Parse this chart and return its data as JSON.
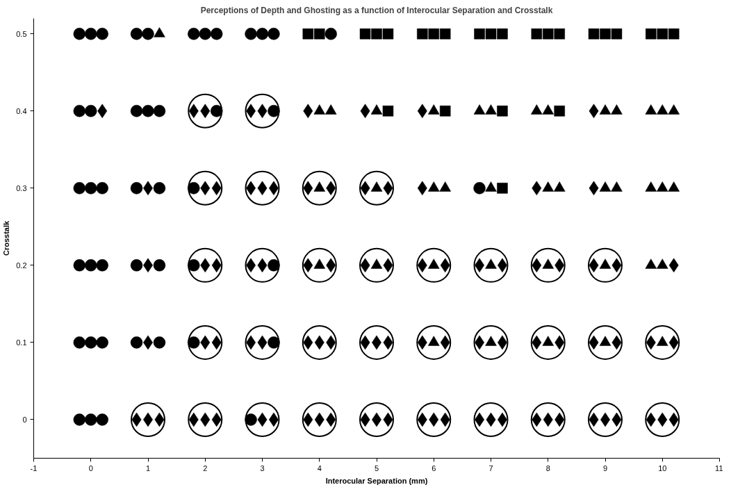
{
  "chart_data": {
    "type": "scatter",
    "title": "Perceptions of Depth and Ghosting as a function of Interocular Separation and Crosstalk",
    "xlabel": "Interocular Separation (mm)",
    "ylabel": "Crosstalk",
    "xlim": [
      -1,
      11
    ],
    "xticks": [
      -1,
      0,
      1,
      2,
      3,
      4,
      5,
      6,
      7,
      8,
      9,
      10,
      11
    ],
    "ylim": [
      -0.05,
      0.52
    ],
    "yticks": [
      0,
      0.1,
      0.2,
      0.3,
      0.4,
      0.5
    ],
    "grid": false,
    "series": [
      {
        "type": "bubble",
        "marker": "circle",
        "color": "#000000",
        "x": [
          2,
          3,
          2,
          3,
          4,
          5,
          2,
          3,
          4,
          5,
          6,
          7,
          8,
          9,
          2,
          3,
          4,
          5,
          6,
          7,
          8,
          9,
          10,
          1,
          2,
          3,
          4,
          5,
          6,
          7,
          8,
          9,
          10
        ],
        "values": [
          0.4,
          0.4,
          0.3,
          0.3,
          0.3,
          0.3,
          0.2,
          0.2,
          0.2,
          0.2,
          0.2,
          0.2,
          0.2,
          0.2,
          0.1,
          0.1,
          0.1,
          0.1,
          0.1,
          0.1,
          0.1,
          0.1,
          0.1,
          0,
          0,
          0,
          0,
          0,
          0,
          0,
          0,
          0,
          0
        ],
        "sizes": [
          1,
          1,
          1,
          1,
          1,
          1,
          1,
          1,
          1,
          1,
          1,
          1,
          1,
          1,
          1,
          1,
          1,
          1,
          1,
          1,
          1,
          1,
          1,
          1,
          1,
          1,
          1,
          1,
          1,
          1,
          1,
          1,
          1
        ]
      },
      {
        "marker": "circle",
        "color": "#000000",
        "x": [
          -0.2,
          0,
          0.2,
          0.8,
          1,
          1.8,
          2,
          2.2,
          2.8,
          3,
          3.2,
          4.2,
          -0.2,
          0,
          0.8,
          1,
          1.2,
          2.2,
          3.2,
          -0.2,
          0,
          0.2,
          0.8,
          1.2,
          1.8,
          6.8,
          -0.2,
          0,
          0.2,
          0.8,
          1.2,
          1.8,
          3.2,
          -0.2,
          0,
          0.2,
          0.8,
          1.2,
          1.8,
          3.2,
          -0.2,
          0,
          0.2,
          2.8
        ],
        "values": [
          0.5,
          0.5,
          0.5,
          0.5,
          0.5,
          0.5,
          0.5,
          0.5,
          0.5,
          0.5,
          0.5,
          0.5,
          0.4,
          0.4,
          0.4,
          0.4,
          0.4,
          0.4,
          0.4,
          0.3,
          0.3,
          0.3,
          0.3,
          0.3,
          0.3,
          0.3,
          0.2,
          0.2,
          0.2,
          0.2,
          0.2,
          0.2,
          0.2,
          0.1,
          0.1,
          0.1,
          0.1,
          0.1,
          0.1,
          0.1,
          0,
          0,
          0,
          0
        ]
      },
      {
        "marker": "diamond",
        "color": "#000000",
        "x": [
          0.2,
          1.8,
          2,
          2.8,
          3,
          3.8,
          4.8,
          5.8,
          8.8,
          1,
          2,
          2.2,
          2.8,
          3,
          3.2,
          3.8,
          4.2,
          4.8,
          5.2,
          5.8,
          7.8,
          8.8,
          1,
          2,
          2.2,
          2.8,
          3,
          3.8,
          4.2,
          4.8,
          5.2,
          5.8,
          6.2,
          6.8,
          7.2,
          7.8,
          8.2,
          8.8,
          9.2,
          10.2,
          1,
          2,
          2.2,
          2.8,
          3,
          3.8,
          4,
          4.2,
          4.8,
          5,
          5.2,
          5.8,
          6.2,
          6.8,
          7.2,
          7.8,
          8.2,
          8.8,
          9.2,
          9.8,
          10.2,
          0.8,
          1,
          1.2,
          1.8,
          2,
          2.2,
          3,
          3.2,
          3.8,
          4,
          4.2,
          4.8,
          5,
          5.2,
          5.8,
          6,
          6.2,
          6.8,
          7,
          7.2,
          7.8,
          8,
          8.2,
          8.8,
          9,
          9.2,
          9.8,
          10,
          10.2
        ],
        "values": [
          0.4,
          0.4,
          0.4,
          0.4,
          0.4,
          0.4,
          0.4,
          0.4,
          0.4,
          0.3,
          0.3,
          0.3,
          0.3,
          0.3,
          0.3,
          0.3,
          0.3,
          0.3,
          0.3,
          0.3,
          0.3,
          0.3,
          0.2,
          0.2,
          0.2,
          0.2,
          0.2,
          0.2,
          0.2,
          0.2,
          0.2,
          0.2,
          0.2,
          0.2,
          0.2,
          0.2,
          0.2,
          0.2,
          0.2,
          0.2,
          0.1,
          0.1,
          0.1,
          0.1,
          0.1,
          0.1,
          0.1,
          0.1,
          0.1,
          0.1,
          0.1,
          0.1,
          0.1,
          0.1,
          0.1,
          0.1,
          0.1,
          0.1,
          0.1,
          0.1,
          0.1,
          0,
          0,
          0,
          0,
          0,
          0,
          0,
          0,
          0,
          0,
          0,
          0,
          0,
          0,
          0,
          0,
          0,
          0,
          0,
          0,
          0,
          0,
          0,
          0,
          0,
          0,
          0,
          0,
          0
        ]
      },
      {
        "marker": "triangle",
        "color": "#000000",
        "x": [
          1.2,
          4,
          4.2,
          5,
          6,
          6.8,
          7,
          7.8,
          8,
          9,
          9.2,
          9.8,
          10,
          10.2,
          4,
          5,
          6,
          6.2,
          7,
          8,
          8.2,
          9,
          9.2,
          9.8,
          10,
          10.2,
          4,
          5,
          6,
          7,
          8,
          9,
          9.8,
          10,
          6,
          7,
          8,
          9,
          10
        ],
        "values": [
          0.5,
          0.4,
          0.4,
          0.4,
          0.4,
          0.4,
          0.4,
          0.4,
          0.4,
          0.4,
          0.4,
          0.4,
          0.4,
          0.4,
          0.3,
          0.3,
          0.3,
          0.3,
          0.3,
          0.3,
          0.3,
          0.3,
          0.3,
          0.3,
          0.3,
          0.3,
          0.2,
          0.2,
          0.2,
          0.2,
          0.2,
          0.2,
          0.2,
          0.2,
          0.1,
          0.1,
          0.1,
          0.1,
          0.1
        ]
      },
      {
        "marker": "square",
        "color": "#000000",
        "x": [
          3.8,
          4,
          4.8,
          5,
          5.2,
          5.8,
          6,
          6.2,
          6.8,
          7,
          7.2,
          7.8,
          8,
          8.2,
          8.8,
          9,
          9.2,
          9.8,
          10,
          10.2,
          5.2,
          6.2,
          7.2,
          8.2,
          7.2
        ],
        "values": [
          0.5,
          0.5,
          0.5,
          0.5,
          0.5,
          0.5,
          0.5,
          0.5,
          0.5,
          0.5,
          0.5,
          0.5,
          0.5,
          0.5,
          0.5,
          0.5,
          0.5,
          0.5,
          0.5,
          0.5,
          0.4,
          0.4,
          0.4,
          0.4,
          0.3
        ]
      }
    ]
  }
}
